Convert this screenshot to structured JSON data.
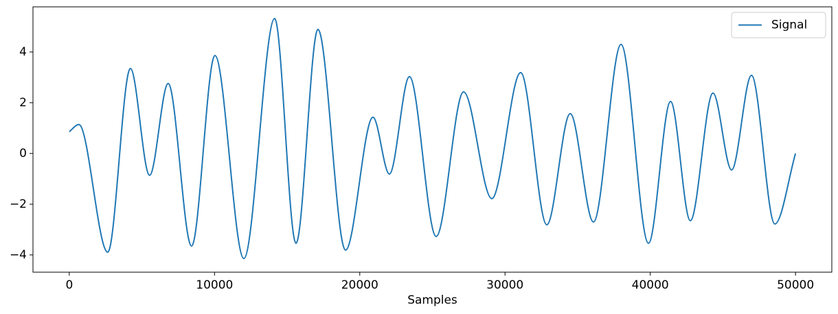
{
  "chart_data": {
    "type": "line",
    "xlabel": "Samples",
    "x": [
      0,
      660,
      2650,
      4210,
      5530,
      6810,
      8420,
      10030,
      12020,
      14140,
      15610,
      17120,
      19020,
      20910,
      22040,
      23420,
      25260,
      27150,
      29090,
      31080,
      32880,
      34490,
      36090,
      37990,
      39880,
      41400,
      42760,
      44320,
      45600,
      46970,
      48580,
      50000
    ],
    "series": [
      {
        "name": "Signal",
        "color": "#1f77b4",
        "values": [
          0.86,
          1.14,
          -3.89,
          3.35,
          -0.86,
          2.76,
          -3.65,
          3.86,
          -4.14,
          5.32,
          -3.54,
          4.89,
          -3.81,
          1.43,
          -0.81,
          3.03,
          -3.27,
          2.43,
          -1.78,
          3.19,
          -2.81,
          1.57,
          -2.7,
          4.3,
          -3.54,
          2.05,
          -2.65,
          2.38,
          -0.65,
          3.08,
          -2.78,
          0.0
        ]
      }
    ],
    "xlim": [
      -2500,
      52500
    ],
    "ylim": [
      -4.68,
      5.78
    ],
    "xticks": [
      0,
      10000,
      20000,
      30000,
      40000,
      50000
    ],
    "yticks": [
      {
        "value": -4,
        "label": "−4"
      },
      {
        "value": -2,
        "label": "−2"
      },
      0,
      2,
      4
    ],
    "legend": "upper right"
  }
}
